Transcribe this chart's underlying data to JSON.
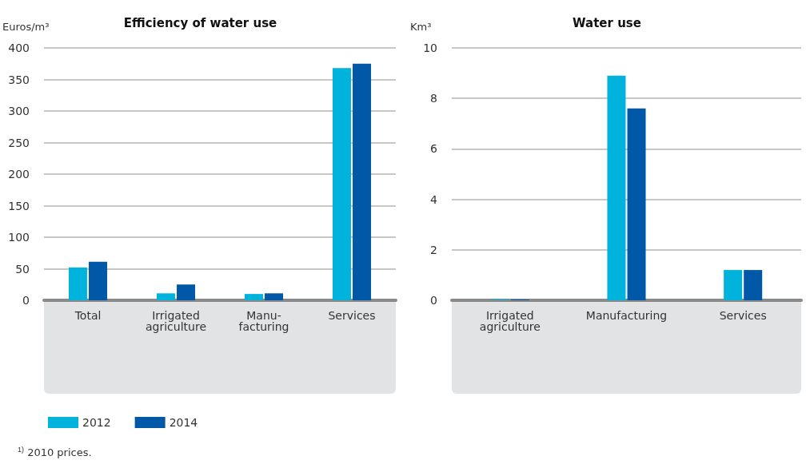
{
  "chart_data": [
    {
      "type": "bar",
      "title": "Efficiency of water use",
      "ylabel": "Euros/m³",
      "categories": [
        "Total",
        "Irrigated\nagriculture",
        "Manu-\nfacturing",
        "Services"
      ],
      "series": [
        {
          "name": "2012",
          "color": "#00b3dc",
          "values": [
            52,
            11,
            10,
            368
          ]
        },
        {
          "name": "2014",
          "color": "#0058a6",
          "values": [
            61,
            25,
            11,
            375
          ]
        }
      ],
      "ylim": [
        0,
        400
      ],
      "yticks": [
        0,
        50,
        100,
        150,
        200,
        250,
        300,
        350,
        400
      ],
      "grid": "y",
      "legend": "bottom",
      "annotations": [
        "$^{1)}$ 2010 prices."
      ]
    },
    {
      "type": "bar",
      "title": "Water use",
      "ylabel": "Km³",
      "categories": [
        "Irrigated\nagriculture",
        "Manufacturing",
        "Services"
      ],
      "series": [
        {
          "color": "#00b3dc",
          "values": [
            0.03,
            8.9,
            1.2
          ]
        },
        {
          "color": "#0058a6",
          "values": [
            0.03,
            7.6,
            1.2
          ]
        }
      ],
      "ylim": [
        0,
        10
      ],
      "yticks": [
        0,
        2,
        4,
        6,
        8,
        10
      ],
      "grid": "y"
    }
  ]
}
